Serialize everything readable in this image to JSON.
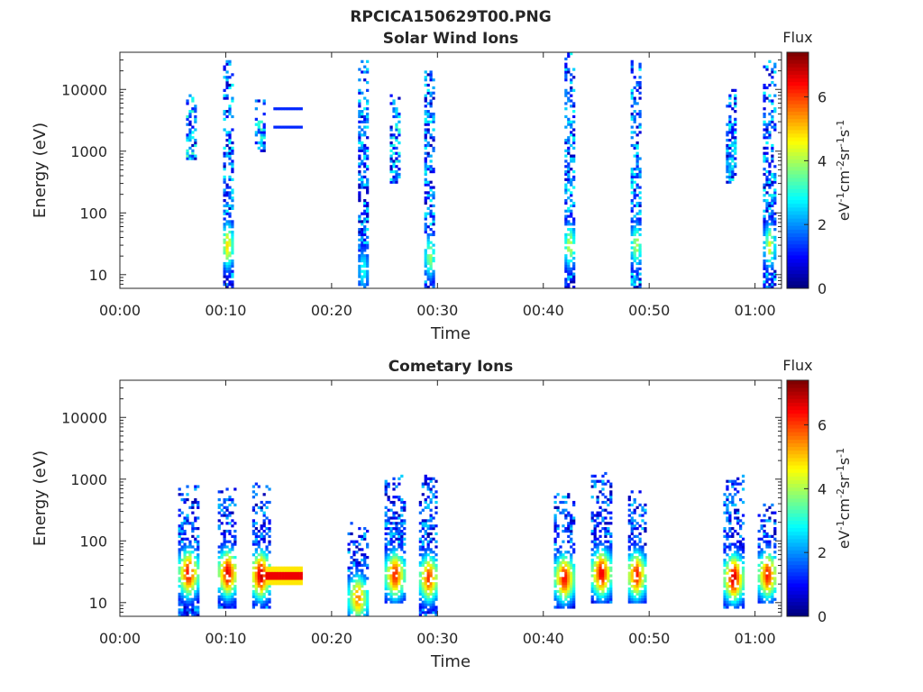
{
  "figure": {
    "title": "RPCICA150629T00.PNG"
  },
  "chart_data": [
    {
      "type": "heatmap",
      "title": "Solar Wind Ions",
      "xlabel": "Time",
      "ylabel": "Energy (eV)",
      "x_ticks": [
        "00:00",
        "00:10",
        "00:20",
        "00:30",
        "00:40",
        "00:50",
        "01:00"
      ],
      "x_range_minutes": [
        0,
        62.5
      ],
      "y_scale": "log",
      "y_ticks": [
        "10",
        "100",
        "1000",
        "10000"
      ],
      "y_range": [
        6,
        40000
      ],
      "colorbar": {
        "title": "Flux",
        "label": "eV-1cm-2sr-1s-1",
        "ticks": [
          "0",
          "2",
          "4",
          "6"
        ],
        "range": [
          0,
          7.4
        ],
        "colormap": "jet"
      },
      "grid": false,
      "bursts": [
        {
          "t": 6.8,
          "emin": 700,
          "emax": 8000,
          "peak_e": null,
          "peak_flux": 3.0
        },
        {
          "t": 10.2,
          "emin": 6,
          "emax": 30000,
          "peak_e": 30,
          "peak_flux": 5.2
        },
        {
          "t": 13.3,
          "emin": 1000,
          "emax": 7000,
          "peak_e": null,
          "peak_flux": 3.0
        },
        {
          "t": 23.0,
          "emin": 6,
          "emax": 30000,
          "peak_e": 12,
          "peak_flux": 3.2
        },
        {
          "t": 26.0,
          "emin": 300,
          "emax": 8000,
          "peak_e": null,
          "peak_flux": 2.8
        },
        {
          "t": 29.3,
          "emin": 6,
          "emax": 20000,
          "peak_e": 20,
          "peak_flux": 4.2
        },
        {
          "t": 42.5,
          "emin": 6,
          "emax": 40000,
          "peak_e": 30,
          "peak_flux": 4.6
        },
        {
          "t": 48.8,
          "emin": 6,
          "emax": 30000,
          "peak_e": 30,
          "peak_flux": 4.4
        },
        {
          "t": 57.8,
          "emin": 300,
          "emax": 10000,
          "peak_e": null,
          "peak_flux": 2.6
        },
        {
          "t": 61.4,
          "emin": 6,
          "emax": 30000,
          "peak_e": 30,
          "peak_flux": 4.6
        }
      ],
      "lines": [
        {
          "t0": 14.5,
          "t1": 17.2,
          "e": 4800,
          "flux": 1.2
        },
        {
          "t0": 14.5,
          "t1": 17.2,
          "e": 2500,
          "flux": 1.2
        }
      ]
    },
    {
      "type": "heatmap",
      "title": "Cometary Ions",
      "xlabel": "Time",
      "ylabel": "Energy (eV)",
      "x_ticks": [
        "00:00",
        "00:10",
        "00:20",
        "00:30",
        "00:40",
        "00:50",
        "01:00"
      ],
      "x_range_minutes": [
        0,
        62.5
      ],
      "y_scale": "log",
      "y_ticks": [
        "10",
        "100",
        "1000",
        "10000"
      ],
      "y_range": [
        6,
        40000
      ],
      "colorbar": {
        "title": "Flux",
        "label": "eV-1cm-2sr-1s-1",
        "ticks": [
          "0",
          "2",
          "4",
          "6"
        ],
        "range": [
          0,
          7.4
        ],
        "colormap": "jet"
      },
      "grid": false,
      "bursts": [
        {
          "t": 6.5,
          "emin": 6,
          "emax": 800,
          "peak_e": 30,
          "peak_flux": 6.8
        },
        {
          "t": 10.2,
          "emin": 8,
          "emax": 700,
          "peak_e": 30,
          "peak_flux": 7.0
        },
        {
          "t": 13.3,
          "emin": 8,
          "emax": 900,
          "peak_e": 28,
          "peak_flux": 7.2
        },
        {
          "t": 22.5,
          "emin": 6,
          "emax": 200,
          "peak_e": 12,
          "peak_flux": 5.8
        },
        {
          "t": 26.0,
          "emin": 10,
          "emax": 1200,
          "peak_e": 28,
          "peak_flux": 6.6
        },
        {
          "t": 29.2,
          "emin": 6,
          "emax": 1200,
          "peak_e": 25,
          "peak_flux": 6.4
        },
        {
          "t": 42.0,
          "emin": 8,
          "emax": 600,
          "peak_e": 25,
          "peak_flux": 6.8
        },
        {
          "t": 45.5,
          "emin": 10,
          "emax": 1300,
          "peak_e": 30,
          "peak_flux": 7.0
        },
        {
          "t": 48.8,
          "emin": 10,
          "emax": 700,
          "peak_e": 28,
          "peak_flux": 6.6
        },
        {
          "t": 58.0,
          "emin": 8,
          "emax": 1200,
          "peak_e": 25,
          "peak_flux": 7.2
        },
        {
          "t": 61.2,
          "emin": 10,
          "emax": 400,
          "peak_e": 28,
          "peak_flux": 6.6
        }
      ],
      "bands": [
        {
          "t0": 13.8,
          "t1": 17.2,
          "e": 28,
          "flux": 6.6
        }
      ]
    }
  ]
}
